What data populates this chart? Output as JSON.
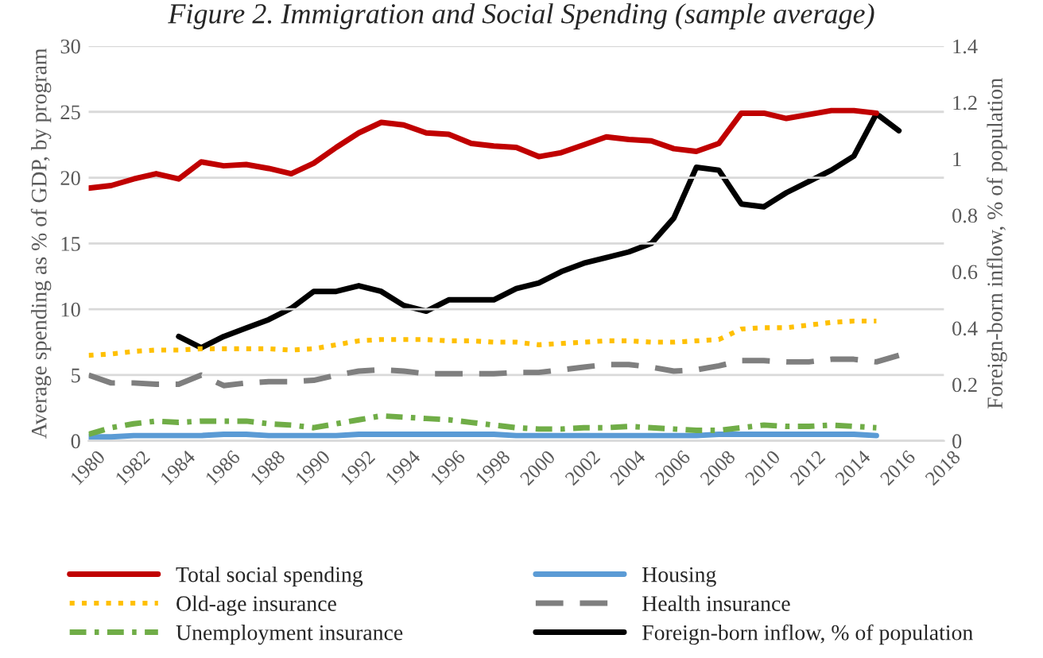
{
  "chart_data": {
    "type": "line",
    "title": "Figure 2. Immigration and Social Spending (sample average)",
    "ylabel": "Average spending as % of GDP, by program",
    "y2label": "Foreign-born inflow, % of population",
    "xlim": [
      1980,
      2018
    ],
    "xticks": [
      1980,
      1982,
      1984,
      1986,
      1988,
      1990,
      1992,
      1994,
      1996,
      1998,
      2000,
      2002,
      2004,
      2006,
      2008,
      2010,
      2012,
      2014,
      2016,
      2018
    ],
    "ylim": [
      0,
      30
    ],
    "yticks": [
      0,
      5,
      10,
      15,
      20,
      25,
      30
    ],
    "y2lim": [
      0,
      1.4
    ],
    "y2ticks": [
      0,
      0.2,
      0.4,
      0.6,
      0.8,
      1,
      1.2,
      1.4
    ],
    "grid": "y",
    "legend": "bottom",
    "series": [
      {
        "name": "Total social spending",
        "color": "#c00000",
        "line_style": "solid",
        "x": [
          1980,
          1981,
          1982,
          1983,
          1984,
          1985,
          1986,
          1987,
          1988,
          1989,
          1990,
          1991,
          1992,
          1993,
          1994,
          1995,
          1996,
          1997,
          1998,
          1999,
          2000,
          2001,
          2002,
          2003,
          2004,
          2005,
          2006,
          2007,
          2008,
          2009,
          2010,
          2011,
          2012,
          2013,
          2014,
          2015
        ],
        "values": [
          19.2,
          19.4,
          19.9,
          20.3,
          19.9,
          21.2,
          20.9,
          21.0,
          20.7,
          20.3,
          21.1,
          22.3,
          23.4,
          24.2,
          24.0,
          23.4,
          23.3,
          22.6,
          22.4,
          22.3,
          21.6,
          21.9,
          22.5,
          23.1,
          22.9,
          22.8,
          22.2,
          22.0,
          22.6,
          24.9,
          24.9,
          24.5,
          24.8,
          25.1,
          25.1,
          24.9
        ]
      },
      {
        "name": "Housing",
        "color": "#5b9bd5",
        "line_style": "solid",
        "x": [
          1980,
          1981,
          1982,
          1983,
          1984,
          1985,
          1986,
          1987,
          1988,
          1989,
          1990,
          1991,
          1992,
          1993,
          1994,
          1995,
          1996,
          1997,
          1998,
          1999,
          2000,
          2001,
          2002,
          2003,
          2004,
          2005,
          2006,
          2007,
          2008,
          2009,
          2010,
          2011,
          2012,
          2013,
          2014,
          2015
        ],
        "values": [
          0.3,
          0.3,
          0.4,
          0.4,
          0.4,
          0.4,
          0.5,
          0.5,
          0.4,
          0.4,
          0.4,
          0.4,
          0.5,
          0.5,
          0.5,
          0.5,
          0.5,
          0.5,
          0.5,
          0.4,
          0.4,
          0.4,
          0.4,
          0.4,
          0.4,
          0.4,
          0.4,
          0.4,
          0.5,
          0.5,
          0.5,
          0.5,
          0.5,
          0.5,
          0.5,
          0.4
        ]
      },
      {
        "name": "Old-age insurance",
        "color": "#ffc000",
        "line_style": "dotted",
        "x": [
          1980,
          1981,
          1982,
          1983,
          1984,
          1985,
          1986,
          1987,
          1988,
          1989,
          1990,
          1991,
          1992,
          1993,
          1994,
          1995,
          1996,
          1997,
          1998,
          1999,
          2000,
          2001,
          2002,
          2003,
          2004,
          2005,
          2006,
          2007,
          2008,
          2009,
          2010,
          2011,
          2012,
          2013,
          2014,
          2015
        ],
        "values": [
          6.5,
          6.6,
          6.8,
          6.9,
          6.9,
          7.0,
          7.0,
          7.0,
          7.0,
          6.9,
          7.0,
          7.3,
          7.6,
          7.7,
          7.7,
          7.7,
          7.6,
          7.6,
          7.5,
          7.5,
          7.3,
          7.4,
          7.5,
          7.6,
          7.6,
          7.5,
          7.5,
          7.6,
          7.7,
          8.5,
          8.6,
          8.6,
          8.8,
          9.0,
          9.1,
          9.1
        ]
      },
      {
        "name": "Health insurance",
        "color": "#7f7f7f",
        "line_style": "dashed",
        "x": [
          1980,
          1981,
          1982,
          1983,
          1984,
          1985,
          1986,
          1987,
          1988,
          1989,
          1990,
          1991,
          1992,
          1993,
          1994,
          1995,
          1996,
          1997,
          1998,
          1999,
          2000,
          2001,
          2002,
          2003,
          2004,
          2005,
          2006,
          2007,
          2008,
          2009,
          2010,
          2011,
          2012,
          2013,
          2014,
          2015,
          2016
        ],
        "values": [
          5.0,
          4.4,
          4.4,
          4.3,
          4.3,
          5.0,
          4.2,
          4.4,
          4.5,
          4.5,
          4.6,
          5.0,
          5.3,
          5.4,
          5.3,
          5.1,
          5.1,
          5.1,
          5.1,
          5.2,
          5.2,
          5.4,
          5.6,
          5.8,
          5.8,
          5.6,
          5.3,
          5.4,
          5.7,
          6.1,
          6.1,
          6.0,
          6.0,
          6.2,
          6.2,
          6.0,
          6.5
        ]
      },
      {
        "name": "Unemployment insurance",
        "color": "#70ad47",
        "line_style": "dashdot",
        "x": [
          1980,
          1981,
          1982,
          1983,
          1984,
          1985,
          1986,
          1987,
          1988,
          1989,
          1990,
          1991,
          1992,
          1993,
          1994,
          1995,
          1996,
          1997,
          1998,
          1999,
          2000,
          2001,
          2002,
          2003,
          2004,
          2005,
          2006,
          2007,
          2008,
          2009,
          2010,
          2011,
          2012,
          2013,
          2014,
          2015
        ],
        "values": [
          0.5,
          1.0,
          1.3,
          1.5,
          1.4,
          1.5,
          1.5,
          1.5,
          1.3,
          1.2,
          1.0,
          1.3,
          1.6,
          1.9,
          1.8,
          1.7,
          1.6,
          1.4,
          1.2,
          1.0,
          0.9,
          0.9,
          1.0,
          1.0,
          1.1,
          1.0,
          0.9,
          0.8,
          0.8,
          1.0,
          1.2,
          1.1,
          1.1,
          1.2,
          1.1,
          1.0
        ]
      },
      {
        "name": "Foreign-born inflow, % of population",
        "color": "#000000",
        "line_style": "solid",
        "axis": "y2",
        "x": [
          1984,
          1985,
          1986,
          1987,
          1988,
          1989,
          1990,
          1991,
          1992,
          1993,
          1994,
          1995,
          1996,
          1997,
          1998,
          1999,
          2000,
          2001,
          2002,
          2003,
          2004,
          2005,
          2006,
          2007,
          2008,
          2009,
          2010,
          2011,
          2012,
          2013,
          2014,
          2015,
          2016
        ],
        "values": [
          0.37,
          0.33,
          0.37,
          0.4,
          0.43,
          0.47,
          0.53,
          0.53,
          0.55,
          0.53,
          0.48,
          0.46,
          0.5,
          0.5,
          0.5,
          0.54,
          0.56,
          0.6,
          0.63,
          0.65,
          0.67,
          0.7,
          0.79,
          0.97,
          0.96,
          0.84,
          0.83,
          0.88,
          0.92,
          0.96,
          1.01,
          1.16,
          1.1
        ]
      }
    ]
  }
}
